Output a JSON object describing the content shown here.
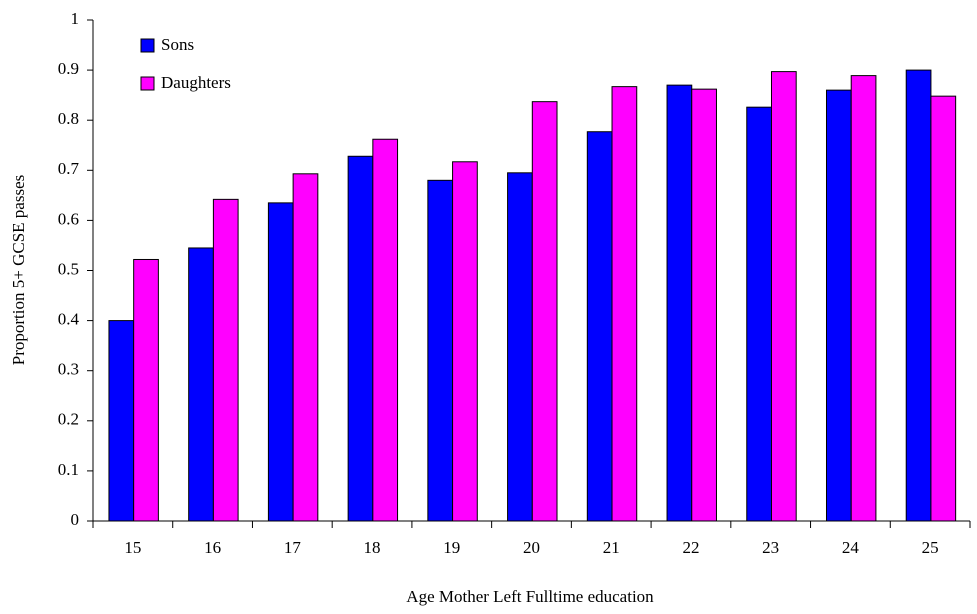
{
  "chart_data": {
    "type": "bar",
    "x_label": "Age Mother Left Fulltime education",
    "y_label": "Proportion 5+ GCSE passes",
    "categories": [
      "15",
      "16",
      "17",
      "18",
      "19",
      "20",
      "21",
      "22",
      "23",
      "24",
      "25"
    ],
    "series": [
      {
        "name": "Sons",
        "color": "#0000ff",
        "values": [
          0.4,
          0.545,
          0.635,
          0.728,
          0.68,
          0.695,
          0.777,
          0.87,
          0.826,
          0.86,
          0.9
        ]
      },
      {
        "name": "Daughters",
        "color": "#ff00ff",
        "values": [
          0.522,
          0.642,
          0.693,
          0.762,
          0.717,
          0.837,
          0.867,
          0.862,
          0.897,
          0.889,
          0.848
        ]
      }
    ],
    "ylim": [
      0,
      1
    ],
    "yticks": [
      0,
      0.1,
      0.2,
      0.3,
      0.4,
      0.5,
      0.6,
      0.7,
      0.8,
      0.9,
      1
    ],
    "grid": false,
    "legend": "top-left"
  }
}
